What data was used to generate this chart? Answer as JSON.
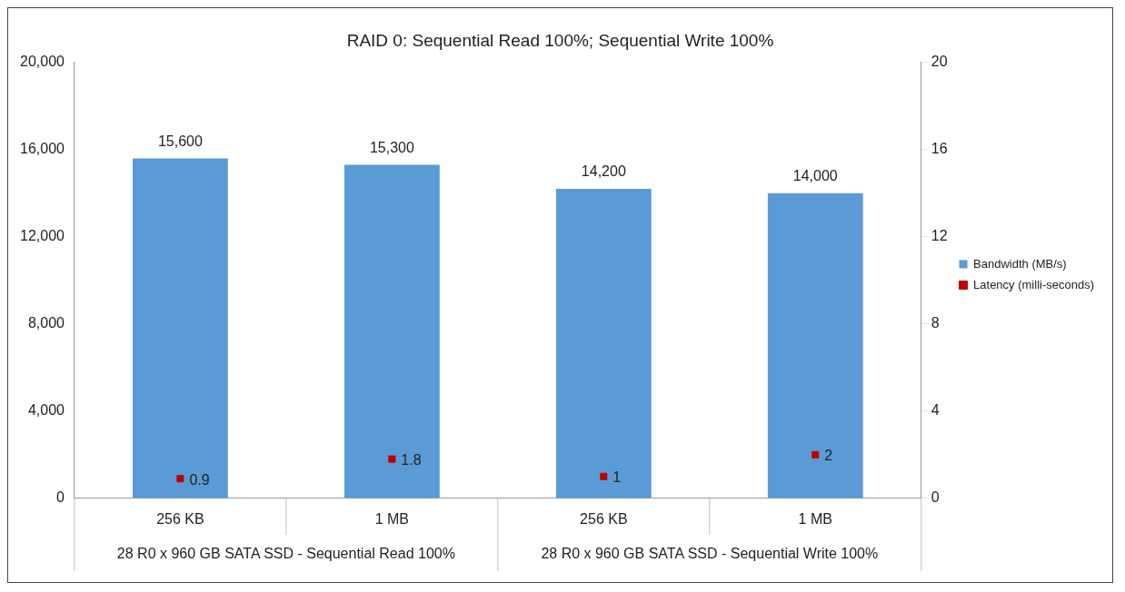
{
  "chart_data": {
    "type": "bar",
    "title": "RAID 0: Sequential Read 100%; Sequential Write 100%",
    "categories": [
      "256 KB",
      "1 MB",
      "256 KB",
      "1 MB"
    ],
    "series": [
      {
        "name": "Bandwidth (MB/s)",
        "color": "#5b9bd5",
        "values": [
          15600,
          15300,
          14200,
          14000
        ],
        "value_labels": [
          "15,600",
          "15,300",
          "14,200",
          "14,000"
        ]
      },
      {
        "name": "Latency (milli-seconds)",
        "type": "scatter",
        "axis": "y2",
        "color": "#c00000",
        "marker": "square",
        "values": [
          0.9,
          1.8,
          1,
          2
        ]
      }
    ],
    "ylim": [
      0,
      20000
    ],
    "yticks": [
      {
        "value": 0,
        "label": "0"
      },
      {
        "value": 4000,
        "label": "4,000"
      },
      {
        "value": 8000,
        "label": "8,000"
      },
      {
        "value": 12000,
        "label": "12,000"
      },
      {
        "value": 16000,
        "label": "16,000"
      },
      {
        "value": 20000,
        "label": "20,000"
      }
    ],
    "y2lim": [
      0,
      20
    ],
    "y2ticks": [
      0,
      4,
      8,
      12,
      16,
      20
    ],
    "annotations": [
      "28 R0 x 960 GB SATA SSD - Sequential Read 100%",
      "28 R0 x 960 GB SATA SSD - Sequential Write 100%"
    ],
    "data_labels": true,
    "grid": false,
    "legend": "right"
  }
}
